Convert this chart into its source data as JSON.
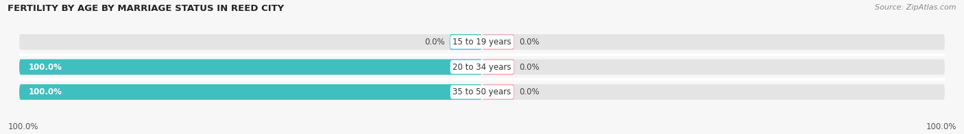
{
  "title": "FERTILITY BY AGE BY MARRIAGE STATUS IN REED CITY",
  "source": "Source: ZipAtlas.com",
  "categories": [
    "15 to 19 years",
    "20 to 34 years",
    "35 to 50 years"
  ],
  "married_values": [
    0.0,
    100.0,
    100.0
  ],
  "unmarried_values": [
    0.0,
    0.0,
    0.0
  ],
  "unmarried_stub": 7.0,
  "married_stub": 7.0,
  "married_color": "#40bfbf",
  "unmarried_color": "#f4a0b5",
  "bar_bg_color": "#e4e4e4",
  "bar_height": 0.62,
  "title_fontsize": 9.5,
  "source_fontsize": 8,
  "label_fontsize": 8.5,
  "tick_fontsize": 8.5,
  "legend_fontsize": 9,
  "x_left_label": "100.0%",
  "x_right_label": "100.0%",
  "bg_color": "#f7f7f7",
  "separator_color": "#ffffff",
  "center_label_bg": "#ffffff"
}
